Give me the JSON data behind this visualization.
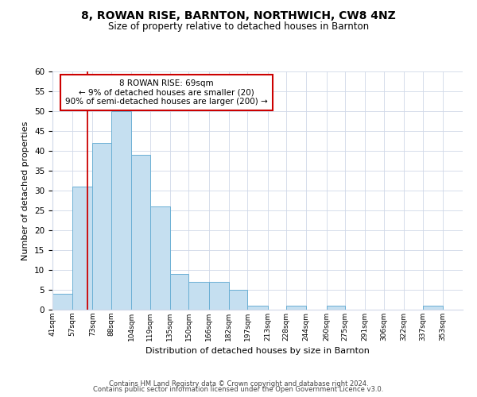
{
  "title": "8, ROWAN RISE, BARNTON, NORTHWICH, CW8 4NZ",
  "subtitle": "Size of property relative to detached houses in Barnton",
  "xlabel": "Distribution of detached houses by size in Barnton",
  "ylabel": "Number of detached properties",
  "bin_labels": [
    "41sqm",
    "57sqm",
    "73sqm",
    "88sqm",
    "104sqm",
    "119sqm",
    "135sqm",
    "150sqm",
    "166sqm",
    "182sqm",
    "197sqm",
    "213sqm",
    "228sqm",
    "244sqm",
    "260sqm",
    "275sqm",
    "291sqm",
    "306sqm",
    "322sqm",
    "337sqm",
    "353sqm"
  ],
  "bar_values": [
    4,
    31,
    42,
    50,
    39,
    26,
    9,
    7,
    7,
    5,
    1,
    0,
    1,
    0,
    1,
    0,
    0,
    0,
    0,
    1,
    0
  ],
  "bar_color": "#c5dff0",
  "bar_edge_color": "#6aafd4",
  "ylim": [
    0,
    60
  ],
  "yticks": [
    0,
    5,
    10,
    15,
    20,
    25,
    30,
    35,
    40,
    45,
    50,
    55,
    60
  ],
  "property_line_x": 69,
  "property_line_color": "#cc0000",
  "annotation_title": "8 ROWAN RISE: 69sqm",
  "annotation_line1": "← 9% of detached houses are smaller (20)",
  "annotation_line2": "90% of semi-detached houses are larger (200) →",
  "annotation_box_color": "#ffffff",
  "annotation_box_edge": "#cc0000",
  "footer_line1": "Contains HM Land Registry data © Crown copyright and database right 2024.",
  "footer_line2": "Contains public sector information licensed under the Open Government Licence v3.0.",
  "bin_edges": [
    41,
    57,
    73,
    88,
    104,
    119,
    135,
    150,
    166,
    182,
    197,
    213,
    228,
    244,
    260,
    275,
    291,
    306,
    322,
    337,
    353,
    369
  ]
}
